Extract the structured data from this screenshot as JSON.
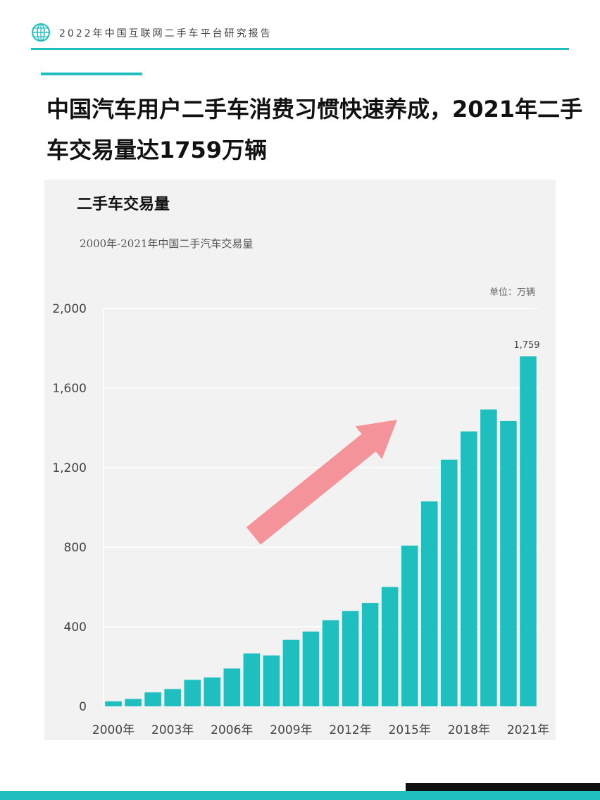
{
  "header": {
    "title": "2022年中国互联网二手车平台研究报告"
  },
  "headline": {
    "text": "中国汽车用户二手车消费习惯快速养成，2021年二手车交易量达1759万辆"
  },
  "chart_data": {
    "type": "bar",
    "title": "二手车交易量",
    "subtitle": "2000年-2021年中国二手汽车交易量",
    "unit_label": "单位：万辆",
    "categories": [
      "2000年",
      "2001年",
      "2002年",
      "2003年",
      "2004年",
      "2005年",
      "2006年",
      "2007年",
      "2008年",
      "2009年",
      "2010年",
      "2011年",
      "2012年",
      "2013年",
      "2014年",
      "2015年",
      "2016年",
      "2017年",
      "2018年",
      "2019年",
      "2020年",
      "2021年"
    ],
    "x_tick_labels": [
      "2000年",
      "2003年",
      "2006年",
      "2009年",
      "2012年",
      "2015年",
      "2018年",
      "2021年"
    ],
    "values": [
      25,
      37,
      70,
      87,
      133,
      145,
      190,
      266,
      256,
      334,
      376,
      433,
      479,
      520,
      600,
      808,
      1030,
      1240,
      1382,
      1492,
      1434,
      1759
    ],
    "ylim": [
      0,
      2000
    ],
    "y_ticks": [
      0,
      400,
      800,
      1200,
      1600,
      2000
    ],
    "y_tick_labels": [
      "0",
      "400",
      "800",
      "1,200",
      "1,600",
      "2,000"
    ],
    "data_labels": [
      {
        "category": "2021年",
        "text": "1,759"
      }
    ],
    "bar_color": "#1fbfbf",
    "arrow_color": "#f4939a",
    "grid": true
  }
}
